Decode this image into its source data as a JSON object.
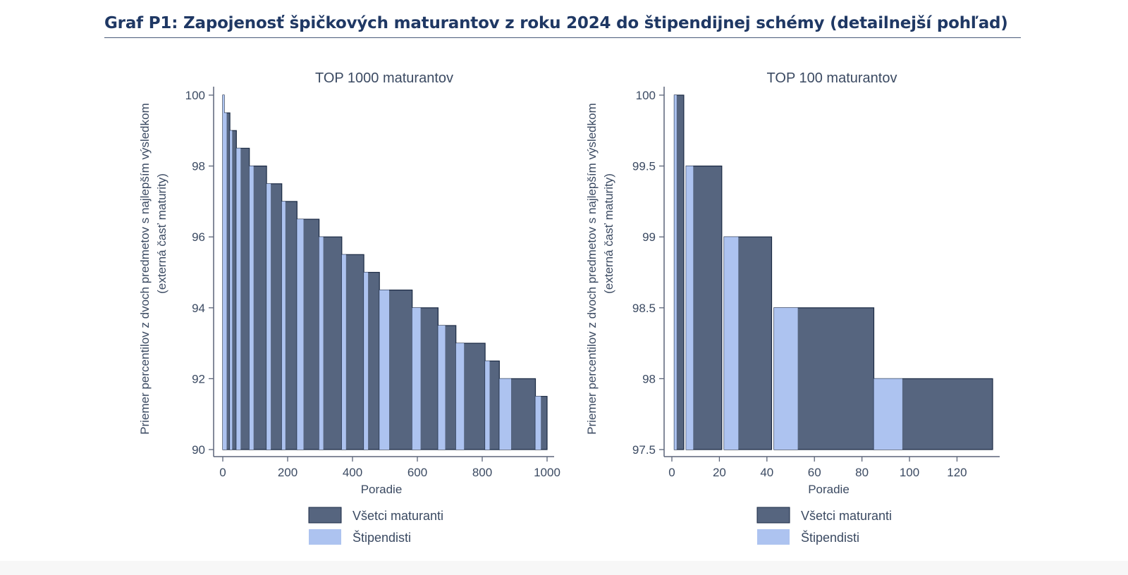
{
  "page": {
    "title": "Graf P1: Zapojenosť špičkových maturantov z roku 2024 do štipendijnej schémy (detailnejší pohľad)"
  },
  "colors": {
    "all": "#56657f",
    "scholarship": "#adc3f0",
    "axis": "#5b6478",
    "text": "#3b4a62",
    "title": "#1f3864"
  },
  "chart_data": [
    {
      "type": "area",
      "title": "TOP 1000 maturantov",
      "xlabel": "Poradie",
      "ylabel": "Priemer percentilov z dvoch predmetov s najlepším výsledkom",
      "ylabel2": "(externá časť maturity)",
      "xlim": [
        0,
        1000
      ],
      "ylim": [
        90,
        100
      ],
      "xticks": [
        "0",
        "200",
        "400",
        "600",
        "800",
        "1000"
      ],
      "yticks": [
        "90",
        "92",
        "94",
        "96",
        "98",
        "100"
      ],
      "legend_position": "bottom",
      "series": [
        {
          "name": "Všetci maturanti",
          "key": "all",
          "steps": [
            {
              "x0": 0,
              "x1": 3,
              "y": 100
            },
            {
              "x0": 3,
              "x1": 22,
              "y": 99.5
            },
            {
              "x0": 22,
              "x1": 42,
              "y": 99
            },
            {
              "x0": 42,
              "x1": 82,
              "y": 98.5
            },
            {
              "x0": 82,
              "x1": 135,
              "y": 98
            },
            {
              "x0": 135,
              "x1": 182,
              "y": 97.5
            },
            {
              "x0": 182,
              "x1": 229,
              "y": 97
            },
            {
              "x0": 229,
              "x1": 297,
              "y": 96.5
            },
            {
              "x0": 297,
              "x1": 367,
              "y": 96
            },
            {
              "x0": 367,
              "x1": 435,
              "y": 95.5
            },
            {
              "x0": 435,
              "x1": 483,
              "y": 95
            },
            {
              "x0": 483,
              "x1": 584,
              "y": 94.5
            },
            {
              "x0": 584,
              "x1": 664,
              "y": 94
            },
            {
              "x0": 664,
              "x1": 719,
              "y": 93.5
            },
            {
              "x0": 719,
              "x1": 809,
              "y": 93
            },
            {
              "x0": 809,
              "x1": 853,
              "y": 92.5
            },
            {
              "x0": 853,
              "x1": 964,
              "y": 92
            },
            {
              "x0": 964,
              "x1": 1000,
              "y": 91.5
            }
          ]
        },
        {
          "name": "Štipendisti",
          "key": "scholarship",
          "steps": [
            {
              "x0": 0,
              "x1": 3,
              "y": 100
            },
            {
              "x0": 3,
              "x1": 12,
              "y": 99.5
            },
            {
              "x0": 22,
              "x1": 29,
              "y": 99
            },
            {
              "x0": 42,
              "x1": 55,
              "y": 98.5
            },
            {
              "x0": 82,
              "x1": 95,
              "y": 98
            },
            {
              "x0": 135,
              "x1": 148,
              "y": 97.5
            },
            {
              "x0": 182,
              "x1": 193,
              "y": 97
            },
            {
              "x0": 229,
              "x1": 249,
              "y": 96.5
            },
            {
              "x0": 297,
              "x1": 310,
              "y": 96
            },
            {
              "x0": 367,
              "x1": 380,
              "y": 95.5
            },
            {
              "x0": 435,
              "x1": 448,
              "y": 95
            },
            {
              "x0": 483,
              "x1": 513,
              "y": 94.5
            },
            {
              "x0": 584,
              "x1": 610,
              "y": 94
            },
            {
              "x0": 664,
              "x1": 686,
              "y": 93.5
            },
            {
              "x0": 719,
              "x1": 744,
              "y": 93
            },
            {
              "x0": 809,
              "x1": 823,
              "y": 92.5
            },
            {
              "x0": 853,
              "x1": 889,
              "y": 92
            },
            {
              "x0": 964,
              "x1": 981,
              "y": 91.5
            }
          ]
        }
      ]
    },
    {
      "type": "area",
      "title": "TOP 100 maturantov",
      "xlabel": "Poradie",
      "ylabel": "Priemer percentilov z dvoch predmetov s najlepším výsledkom",
      "ylabel2": "(externá časť maturity)",
      "xlim": [
        0,
        135
      ],
      "ylim": [
        97.5,
        100
      ],
      "xticks": [
        "0",
        "20",
        "40",
        "60",
        "80",
        "100",
        "120"
      ],
      "yticks": [
        "97.5",
        "98",
        "98.5",
        "99",
        "99.5",
        "100"
      ],
      "legend_position": "bottom",
      "series": [
        {
          "name": "Všetci maturanti",
          "key": "all",
          "steps": [
            {
              "x0": 1,
              "x1": 5,
              "y": 100
            },
            {
              "x0": 6,
              "x1": 21,
              "y": 99.5
            },
            {
              "x0": 22,
              "x1": 42,
              "y": 99
            },
            {
              "x0": 43,
              "x1": 85,
              "y": 98.5
            },
            {
              "x0": 85,
              "x1": 135,
              "y": 98
            }
          ]
        },
        {
          "name": "Štipendisti",
          "key": "scholarship",
          "steps": [
            {
              "x0": 1,
              "x1": 2,
              "y": 100
            },
            {
              "x0": 6,
              "x1": 9,
              "y": 99.5
            },
            {
              "x0": 22,
              "x1": 28,
              "y": 99
            },
            {
              "x0": 43,
              "x1": 53,
              "y": 98.5
            },
            {
              "x0": 85,
              "x1": 97,
              "y": 98
            }
          ]
        }
      ]
    }
  ]
}
